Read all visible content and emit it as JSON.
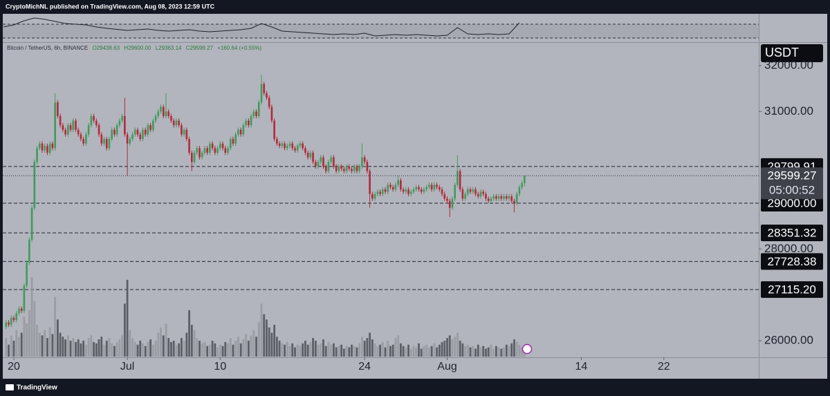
{
  "header": {
    "title": "CryptoMichNL published on TradingView.com, Aug 08, 2023 12:59 UTC"
  },
  "footer": {
    "brand": "TradingView"
  },
  "chart_data": {
    "type": "candlestick",
    "symbol": "Bitcoin / TetherUS, 6h, BINANCE",
    "legend_values": [
      "O29438.63",
      "H29600.00",
      "L29363.14",
      "C29599.27",
      "+160.64 (+0.55%)"
    ],
    "currency": "USDT",
    "countdown": "05:00:52",
    "up_color": "#3f9a5b",
    "down_color": "#b3283a",
    "up_volume_color": "#9a9ca4",
    "down_volume_color": "#5b5e66",
    "xlim": [
      18.66,
      92.2
    ],
    "xticks": [
      20,
      {
        "value": 31,
        "label": "Jul"
      },
      {
        "value": 40,
        "label": "10"
      },
      {
        "value": 54,
        "label": "24"
      },
      {
        "value": 62,
        "label": "Aug"
      },
      {
        "value": 75,
        "label": "14"
      },
      {
        "value": 83,
        "label": "22"
      }
    ],
    "ylim": [
      25638,
      32497
    ],
    "yticks": [
      {
        "value": 26000,
        "label": "26000.00"
      },
      {
        "value": 28000,
        "label": "28000.00"
      },
      {
        "value": 31000,
        "label": "31000.00"
      },
      {
        "value": 32000,
        "label": "32000.00"
      }
    ],
    "price_lines": [
      29799.91,
      {
        "value": 29000,
        "label": "29000.00"
      },
      28351.32,
      27728.38,
      {
        "value": 27115.2,
        "label": "27115.20"
      }
    ],
    "x": [
      19.25,
      19.5,
      19.75,
      20,
      20.25,
      20.5,
      20.75,
      21,
      21.25,
      21.5,
      21.75,
      22,
      22.25,
      22.5,
      22.75,
      23,
      23.25,
      23.5,
      23.75,
      24,
      24.25,
      24.5,
      24.75,
      25,
      25.25,
      25.5,
      25.75,
      26,
      26.25,
      26.5,
      26.75,
      27,
      27.25,
      27.5,
      27.75,
      28,
      28.25,
      28.5,
      28.75,
      29,
      29.25,
      29.5,
      29.75,
      30,
      30.25,
      30.5,
      30.75,
      31,
      31.25,
      31.5,
      31.75,
      32,
      32.25,
      32.5,
      32.75,
      33,
      33.25,
      33.5,
      33.75,
      34,
      34.25,
      34.5,
      34.75,
      35,
      35.25,
      35.5,
      35.75,
      36,
      36.25,
      36.5,
      36.75,
      37,
      37.25,
      37.5,
      37.75,
      38,
      38.25,
      38.5,
      38.75,
      39,
      39.25,
      39.5,
      39.75,
      40,
      40.25,
      40.5,
      40.75,
      41,
      41.25,
      41.5,
      41.75,
      42,
      42.25,
      42.5,
      42.75,
      43,
      43.25,
      43.5,
      43.75,
      44,
      44.25,
      44.5,
      44.75,
      45,
      45.25,
      45.5,
      45.75,
      46,
      46.25,
      46.5,
      46.75,
      47,
      47.25,
      47.5,
      47.75,
      48,
      48.25,
      48.5,
      48.75,
      49,
      49.25,
      49.5,
      49.75,
      50,
      50.25,
      50.5,
      50.75,
      51,
      51.25,
      51.5,
      51.75,
      52,
      52.25,
      52.5,
      52.75,
      53,
      53.25,
      53.5,
      53.75,
      54,
      54.25,
      54.5,
      54.75,
      55,
      55.25,
      55.5,
      55.75,
      56,
      56.25,
      56.5,
      56.75,
      57,
      57.25,
      57.5,
      57.75,
      58,
      58.25,
      58.5,
      58.75,
      59,
      59.25,
      59.5,
      59.75,
      60,
      60.25,
      60.5,
      60.75,
      61,
      61.25,
      61.5,
      61.75,
      62,
      62.25,
      62.5,
      62.75,
      63,
      63.25,
      63.5,
      63.75,
      64,
      64.25,
      64.5,
      64.75,
      65,
      65.25,
      65.5,
      65.75,
      66,
      66.25,
      66.5,
      66.75,
      67,
      67.25,
      67.5,
      67.75,
      68,
      68.25,
      68.5,
      68.75,
      69,
      69.25,
      69.5
    ],
    "open": [
      26300,
      26400,
      26350,
      26500,
      26450,
      26600,
      26700,
      26650,
      27200,
      27700,
      28200,
      28900,
      29900,
      30200,
      30300,
      30150,
      30250,
      30100,
      30300,
      30200,
      31200,
      30900,
      30700,
      30600,
      30500,
      30700,
      30600,
      30800,
      30600,
      30500,
      30400,
      30300,
      30500,
      30700,
      30900,
      30800,
      30700,
      30500,
      30300,
      30400,
      30200,
      30400,
      30600,
      30500,
      30700,
      30800,
      30900,
      30500,
      30300,
      30400,
      30500,
      30600,
      30500,
      30400,
      30600,
      30500,
      30700,
      30600,
      30800,
      30900,
      31000,
      31100,
      30900,
      31000,
      30900,
      30800,
      30700,
      30800,
      30700,
      30500,
      30600,
      30400,
      30100,
      29900,
      30100,
      30200,
      30000,
      30100,
      30200,
      30100,
      30300,
      30200,
      30100,
      30200,
      30300,
      30200,
      30100,
      30200,
      30400,
      30300,
      30500,
      30600,
      30500,
      30700,
      30800,
      30700,
      30900,
      31000,
      30900,
      31200,
      31600,
      31400,
      31300,
      31100,
      30800,
      30400,
      30300,
      30250,
      30300,
      30200,
      30250,
      30300,
      30200,
      30150,
      30250,
      30300,
      30200,
      30100,
      30000,
      30100,
      29900,
      29800,
      29900,
      30000,
      29800,
      29700,
      29900,
      30000,
      29800,
      29700,
      29800,
      29750,
      29700,
      29800,
      29750,
      29700,
      29800,
      29700,
      29800,
      30000,
      29900,
      29700,
      29200,
      29100,
      29200,
      29250,
      29200,
      29300,
      29250,
      29400,
      29350,
      29300,
      29400,
      29500,
      29300,
      29250,
      29300,
      29200,
      29250,
      29300,
      29350,
      29300,
      29250,
      29300,
      29350,
      29400,
      29300,
      29400,
      29350,
      29300,
      29200,
      29100,
      29050,
      28900,
      29100,
      29400,
      29700,
      29300,
      29100,
      29200,
      29300,
      29250,
      29300,
      29200,
      29150,
      29250,
      29200,
      29100,
      29050,
      29100,
      29150,
      29100,
      29150,
      29100,
      29150,
      29100,
      29150,
      29050,
      29000,
      29200,
      29350,
      29438.63
    ],
    "high": [
      26450,
      26450,
      26550,
      26550,
      26650,
      26750,
      26750,
      27250,
      27750,
      28250,
      28950,
      29950,
      30250,
      30350,
      30350,
      30300,
      30300,
      30350,
      30350,
      31400,
      31250,
      30950,
      30750,
      30650,
      30750,
      30750,
      30850,
      30850,
      30650,
      30550,
      30450,
      30550,
      30750,
      30950,
      30950,
      30850,
      30750,
      30550,
      30450,
      30450,
      30450,
      30650,
      30650,
      30750,
      30850,
      30950,
      31300,
      30550,
      30450,
      30550,
      30650,
      30650,
      30550,
      30650,
      30650,
      30750,
      30750,
      30850,
      30950,
      31050,
      31150,
      31150,
      31400,
      31050,
      30950,
      30850,
      30850,
      30850,
      30750,
      30650,
      30650,
      30450,
      30150,
      30150,
      30250,
      30250,
      30150,
      30250,
      30250,
      30350,
      30350,
      30250,
      30250,
      30350,
      30350,
      30250,
      30250,
      30450,
      30450,
      30550,
      30650,
      30650,
      30750,
      30850,
      30850,
      30950,
      31050,
      31050,
      31250,
      31800,
      31650,
      31450,
      31350,
      31150,
      30850,
      30450,
      30350,
      30350,
      30350,
      30300,
      30350,
      30350,
      30250,
      30300,
      30350,
      30350,
      30250,
      30150,
      30150,
      30150,
      29950,
      29950,
      30050,
      30050,
      29850,
      29950,
      30050,
      30050,
      29850,
      29850,
      29850,
      29800,
      29850,
      29850,
      29800,
      29850,
      29850,
      29850,
      30300,
      30050,
      29950,
      29750,
      29250,
      29250,
      29300,
      29300,
      29350,
      29350,
      29450,
      29450,
      29400,
      29450,
      29600,
      29550,
      29350,
      29350,
      29350,
      29300,
      29350,
      29400,
      29400,
      29350,
      29350,
      29400,
      29450,
      29450,
      29450,
      29450,
      29400,
      29350,
      29250,
      29150,
      29100,
      29150,
      29450,
      30050,
      29750,
      29350,
      29250,
      29350,
      29350,
      29350,
      29350,
      29250,
      29300,
      29300,
      29250,
      29150,
      29150,
      29200,
      29200,
      29200,
      29200,
      29200,
      29200,
      29200,
      29200,
      29100,
      29250,
      29400,
      29490,
      29600
    ],
    "low": [
      26250,
      26300,
      26300,
      26400,
      26400,
      26550,
      26600,
      26600,
      27150,
      27650,
      28150,
      28850,
      29850,
      30150,
      30100,
      30100,
      30050,
      30050,
      30150,
      30150,
      30850,
      30650,
      30550,
      30450,
      30450,
      30550,
      30550,
      30550,
      30450,
      30350,
      30250,
      30250,
      30450,
      30650,
      30750,
      30650,
      30450,
      30250,
      30250,
      30150,
      30150,
      30350,
      30450,
      30450,
      30650,
      30750,
      30450,
      29600,
      30250,
      30350,
      30450,
      30450,
      30350,
      30350,
      30450,
      30450,
      30550,
      30550,
      30750,
      30850,
      30950,
      30850,
      30850,
      30850,
      30750,
      30650,
      30650,
      30650,
      30450,
      30450,
      30350,
      30050,
      29700,
      29850,
      30050,
      29950,
      29950,
      30050,
      30050,
      30050,
      30150,
      30050,
      30050,
      30150,
      30150,
      30050,
      30050,
      30150,
      30250,
      30250,
      30450,
      30450,
      30450,
      30650,
      30650,
      30650,
      30850,
      30850,
      30850,
      31150,
      31350,
      31250,
      31050,
      30750,
      30350,
      30250,
      30200,
      30200,
      30150,
      30150,
      30200,
      30150,
      30100,
      30100,
      30200,
      30150,
      30050,
      29950,
      29950,
      29850,
      29750,
      29750,
      29850,
      29750,
      29650,
      29650,
      29850,
      29750,
      29650,
      29650,
      29700,
      29650,
      29650,
      29700,
      29650,
      29650,
      29650,
      29650,
      29750,
      29850,
      29650,
      28900,
      29050,
      29050,
      29150,
      29150,
      29150,
      29200,
      29200,
      29300,
      29250,
      29250,
      29350,
      29250,
      29200,
      29200,
      29150,
      29150,
      29200,
      29250,
      29250,
      29200,
      29200,
      29250,
      29300,
      29250,
      29250,
      29300,
      29250,
      29150,
      29050,
      29000,
      28700,
      28850,
      29050,
      29350,
      29250,
      29050,
      29050,
      29150,
      29200,
      29200,
      29150,
      29100,
      29100,
      29150,
      29050,
      29000,
      29000,
      29050,
      29050,
      29050,
      29050,
      29050,
      29050,
      29050,
      29000,
      28800,
      28950,
      29150,
      29300,
      29363.14
    ],
    "close": [
      26400,
      26350,
      26500,
      26450,
      26600,
      26700,
      26650,
      27200,
      27700,
      28200,
      28900,
      29900,
      30200,
      30300,
      30150,
      30250,
      30100,
      30300,
      30200,
      31200,
      30900,
      30700,
      30600,
      30500,
      30700,
      30600,
      30800,
      30600,
      30500,
      30400,
      30300,
      30500,
      30700,
      30900,
      30800,
      30700,
      30500,
      30300,
      30400,
      30200,
      30400,
      30600,
      30500,
      30700,
      30800,
      30900,
      30500,
      30300,
      30400,
      30500,
      30600,
      30500,
      30400,
      30600,
      30500,
      30700,
      30600,
      30800,
      30900,
      31000,
      31100,
      30900,
      31000,
      30900,
      30800,
      30700,
      30800,
      30700,
      30500,
      30600,
      30400,
      30100,
      29900,
      30100,
      30200,
      30000,
      30100,
      30200,
      30100,
      30300,
      30200,
      30100,
      30200,
      30300,
      30200,
      30100,
      30200,
      30400,
      30300,
      30500,
      30600,
      30500,
      30700,
      30800,
      30700,
      30900,
      31000,
      30900,
      31200,
      31600,
      31400,
      31300,
      31100,
      30800,
      30400,
      30300,
      30250,
      30300,
      30200,
      30250,
      30300,
      30200,
      30150,
      30250,
      30300,
      30200,
      30100,
      30000,
      30100,
      29900,
      29800,
      29900,
      30000,
      29800,
      29700,
      29900,
      30000,
      29800,
      29700,
      29800,
      29750,
      29700,
      29800,
      29750,
      29700,
      29800,
      29700,
      29800,
      30000,
      29900,
      29700,
      29200,
      29100,
      29200,
      29250,
      29200,
      29300,
      29250,
      29400,
      29350,
      29300,
      29400,
      29500,
      29300,
      29250,
      29300,
      29200,
      29250,
      29300,
      29350,
      29300,
      29250,
      29300,
      29350,
      29400,
      29300,
      29400,
      29350,
      29300,
      29200,
      29100,
      29050,
      28900,
      29100,
      29400,
      29700,
      29300,
      29100,
      29200,
      29300,
      29250,
      29300,
      29200,
      29150,
      29250,
      29200,
      29100,
      29050,
      29100,
      29150,
      29100,
      29150,
      29100,
      29150,
      29100,
      29150,
      29050,
      29000,
      29200,
      29350,
      29438.63,
      29599.27
    ],
    "volume": [
      14000,
      9000,
      16000,
      12000,
      20000,
      15000,
      18000,
      30000,
      25000,
      35000,
      60000,
      42000,
      24000,
      18000,
      16000,
      20000,
      14000,
      22000,
      17000,
      45000,
      28000,
      18000,
      15000,
      13000,
      16000,
      12000,
      14000,
      11000,
      13000,
      10000,
      12000,
      9000,
      14000,
      16000,
      11000,
      10000,
      13000,
      15000,
      9000,
      12000,
      14000,
      10000,
      8000,
      11000,
      13000,
      16000,
      40000,
      58000,
      20000,
      14000,
      11000,
      9000,
      12000,
      10000,
      8000,
      11000,
      13000,
      9000,
      12000,
      18000,
      22000,
      16000,
      25000,
      14000,
      11000,
      12000,
      9000,
      10000,
      14000,
      12000,
      18000,
      35000,
      24000,
      20000,
      14000,
      12000,
      10000,
      11000,
      8000,
      9000,
      12000,
      10000,
      7000,
      9000,
      8000,
      11000,
      10000,
      14000,
      9000,
      12000,
      15000,
      10000,
      13000,
      17000,
      12000,
      16000,
      20000,
      15000,
      26000,
      40000,
      32000,
      28000,
      22000,
      18000,
      24000,
      15000,
      12000,
      10000,
      9000,
      11000,
      8000,
      10000,
      7000,
      9000,
      8000,
      10000,
      12000,
      9000,
      11000,
      14000,
      12000,
      9000,
      10000,
      13000,
      8000,
      11000,
      9000,
      10000,
      7000,
      8000,
      9000,
      6000,
      8000,
      7000,
      9000,
      8000,
      7000,
      10000,
      15000,
      12000,
      14000,
      18000,
      13000,
      10000,
      8000,
      9000,
      11000,
      7000,
      12000,
      8000,
      9000,
      14000,
      16000,
      10000,
      8000,
      7000,
      9000,
      6000,
      8000,
      7000,
      10000,
      6000,
      8000,
      9000,
      7000,
      8000,
      10000,
      7000,
      9000,
      11000,
      12000,
      14000,
      16000,
      13000,
      15000,
      18000,
      12000,
      10000,
      8000,
      9000,
      7000,
      8000,
      6000,
      9000,
      7000,
      8000,
      6000,
      7000,
      9000,
      6000,
      8000,
      7000,
      6000,
      7000,
      9000,
      8000,
      10000,
      13000,
      11000,
      9000,
      7000,
      4000
    ],
    "indicator": {
      "color": "#1e222d",
      "ylim": [
        20,
        100
      ],
      "levels": [
        70,
        30
      ],
      "x": [
        19,
        20,
        21,
        22,
        23,
        24,
        25,
        26,
        27,
        28,
        29,
        30,
        31,
        32,
        33,
        34,
        35,
        36,
        37,
        38,
        39,
        40,
        41,
        42,
        43,
        44,
        45,
        46,
        47,
        48,
        49,
        50,
        51,
        52,
        53,
        54,
        55,
        56,
        57,
        58,
        59,
        60,
        61,
        62,
        63,
        64,
        65,
        66,
        67,
        68,
        69
      ],
      "values": [
        62,
        68,
        80,
        88,
        84,
        78,
        72,
        70,
        68,
        62,
        58,
        55,
        52,
        54,
        56,
        52,
        50,
        52,
        54,
        50,
        48,
        50,
        52,
        54,
        58,
        72,
        62,
        50,
        48,
        46,
        44,
        42,
        40,
        42,
        40,
        44,
        36,
        38,
        40,
        38,
        40,
        38,
        36,
        38,
        60,
        42,
        40,
        42,
        40,
        42,
        74
      ]
    }
  }
}
